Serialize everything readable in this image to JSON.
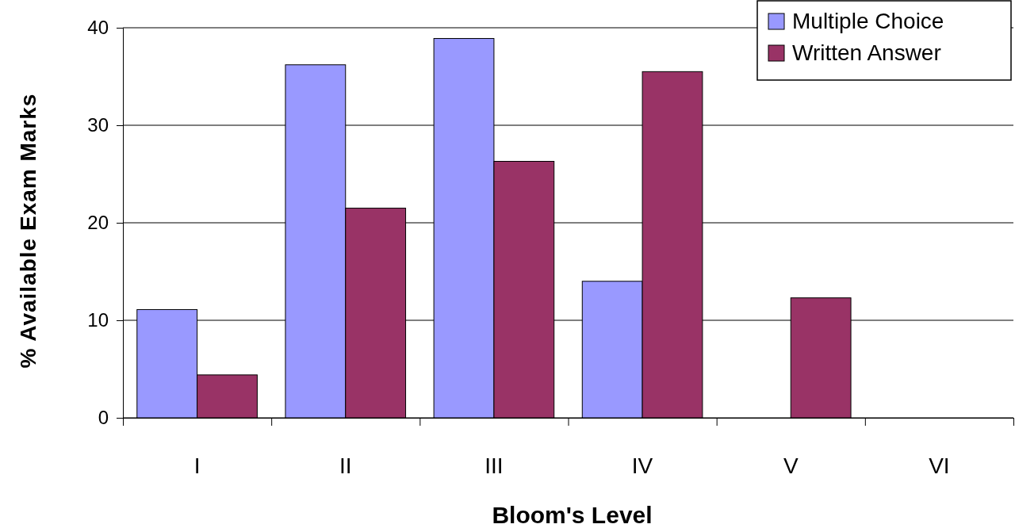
{
  "chart_data": {
    "type": "bar",
    "xlabel": "Bloom's Level",
    "ylabel": "% Available Exam Marks",
    "categories": [
      "I",
      "II",
      "III",
      "IV",
      "V",
      "VI"
    ],
    "series": [
      {
        "name": "Multiple Choice",
        "color": "#9999ff",
        "values": [
          11.1,
          36.2,
          38.9,
          14.0,
          0,
          0
        ]
      },
      {
        "name": "Written Answer",
        "color": "#993366",
        "values": [
          4.4,
          21.5,
          26.3,
          35.5,
          12.3,
          0
        ]
      }
    ],
    "ylim": [
      0,
      40
    ],
    "yticks": [
      0,
      10,
      20,
      30,
      40
    ],
    "grid": "y",
    "legend": "top right"
  }
}
